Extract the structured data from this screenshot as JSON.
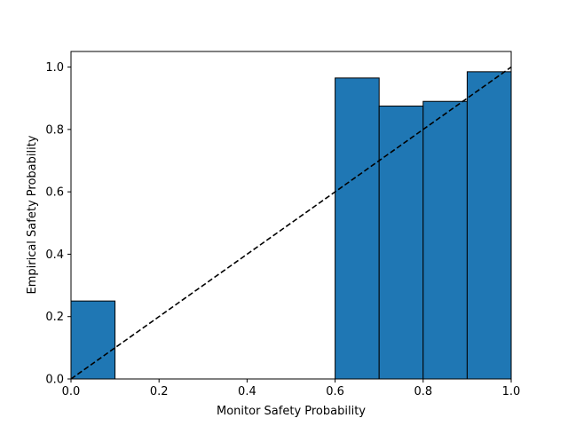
{
  "chart_data": {
    "type": "bar",
    "title": "",
    "xlabel": "Monitor Safety Probability",
    "ylabel": "Empirical Safety Probability",
    "xlim": [
      0,
      1
    ],
    "ylim": [
      0,
      1.05
    ],
    "grid": false,
    "bar_color": "#1f77b4",
    "bar_edge_color": "#000000",
    "reference_line_color": "#000000",
    "bars": [
      {
        "x0": 0.0,
        "x1": 0.1,
        "value": 0.25
      },
      {
        "x0": 0.6,
        "x1": 0.7,
        "value": 0.965
      },
      {
        "x0": 0.7,
        "x1": 0.8,
        "value": 0.875
      },
      {
        "x0": 0.8,
        "x1": 0.9,
        "value": 0.89
      },
      {
        "x0": 0.9,
        "x1": 1.0,
        "value": 0.985
      }
    ],
    "reference_line": {
      "style": "dashed",
      "from": [
        0,
        0
      ],
      "to": [
        1,
        1
      ]
    },
    "x_ticks": [
      {
        "value": 0.0,
        "label": "0.0"
      },
      {
        "value": 0.2,
        "label": "0.2"
      },
      {
        "value": 0.4,
        "label": "0.4"
      },
      {
        "value": 0.6,
        "label": "0.6"
      },
      {
        "value": 0.8,
        "label": "0.8"
      },
      {
        "value": 1.0,
        "label": "1.0"
      }
    ],
    "y_ticks": [
      {
        "value": 0.0,
        "label": "0.0"
      },
      {
        "value": 0.2,
        "label": "0.2"
      },
      {
        "value": 0.4,
        "label": "0.4"
      },
      {
        "value": 0.6,
        "label": "0.6"
      },
      {
        "value": 0.8,
        "label": "0.8"
      },
      {
        "value": 1.0,
        "label": "1.0"
      }
    ]
  }
}
